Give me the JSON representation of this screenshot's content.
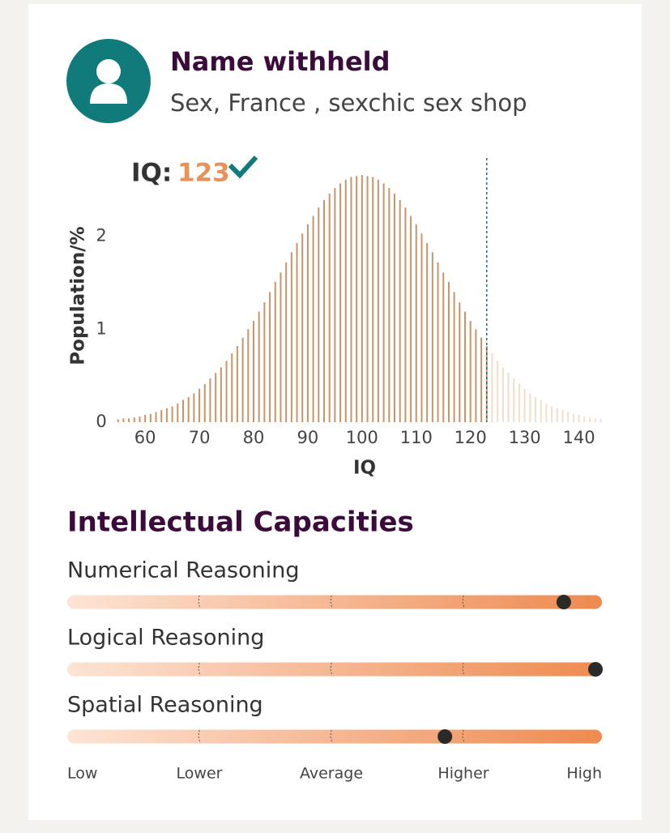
{
  "profile": {
    "name": "Name withheld",
    "subtitle": "Sex, France , sexchic sex shop"
  },
  "chart_data": {
    "type": "bar",
    "iq_label": "IQ:",
    "iq_score": 123,
    "xlabel": "IQ",
    "ylabel": "Population/%",
    "x": [
      55,
      56,
      57,
      58,
      59,
      60,
      61,
      62,
      63,
      64,
      65,
      66,
      67,
      68,
      69,
      70,
      71,
      72,
      73,
      74,
      75,
      76,
      77,
      78,
      79,
      80,
      81,
      82,
      83,
      84,
      85,
      86,
      87,
      88,
      89,
      90,
      91,
      92,
      93,
      94,
      95,
      96,
      97,
      98,
      99,
      100,
      101,
      102,
      103,
      104,
      105,
      106,
      107,
      108,
      109,
      110,
      111,
      112,
      113,
      114,
      115,
      116,
      117,
      118,
      119,
      120,
      121,
      122,
      123,
      124,
      125,
      126,
      127,
      128,
      129,
      130,
      131,
      132,
      133,
      134,
      135,
      136,
      137,
      138,
      139,
      140,
      141,
      142,
      143,
      144
    ],
    "values": [
      0.03,
      0.04,
      0.04,
      0.05,
      0.06,
      0.08,
      0.09,
      0.11,
      0.13,
      0.15,
      0.17,
      0.2,
      0.24,
      0.27,
      0.31,
      0.36,
      0.41,
      0.47,
      0.53,
      0.59,
      0.66,
      0.74,
      0.82,
      0.91,
      1.0,
      1.09,
      1.19,
      1.29,
      1.4,
      1.51,
      1.61,
      1.72,
      1.83,
      1.93,
      2.03,
      2.13,
      2.22,
      2.31,
      2.39,
      2.46,
      2.52,
      2.57,
      2.61,
      2.64,
      2.65,
      2.66,
      2.65,
      2.64,
      2.61,
      2.57,
      2.52,
      2.46,
      2.39,
      2.31,
      2.22,
      2.13,
      2.03,
      1.93,
      1.83,
      1.72,
      1.61,
      1.51,
      1.4,
      1.29,
      1.19,
      1.09,
      1.0,
      0.91,
      0.82,
      0.74,
      0.66,
      0.59,
      0.53,
      0.47,
      0.41,
      0.36,
      0.31,
      0.27,
      0.24,
      0.2,
      0.17,
      0.15,
      0.13,
      0.11,
      0.09,
      0.08,
      0.06,
      0.05,
      0.04,
      0.04
    ],
    "color": "#c8946a",
    "color_above": "#f2dccb",
    "marker_color": "#1d7070",
    "xlim": [
      54,
      145
    ],
    "ylim": [
      0,
      2.8
    ],
    "xticks": [
      60,
      70,
      80,
      90,
      100,
      110,
      120,
      130,
      140
    ],
    "yticks": [
      0,
      1,
      2
    ]
  },
  "capacities": {
    "title": "Intellectual Capacities",
    "scale": [
      {
        "value": 0,
        "label": "Low"
      },
      {
        "value": 1,
        "label": "Lower"
      },
      {
        "value": 2,
        "label": "Average"
      },
      {
        "value": 3,
        "label": "Higher"
      },
      {
        "value": 4,
        "label": "High"
      }
    ],
    "items": [
      {
        "label": "Numerical Reasoning",
        "value": 3.76
      },
      {
        "label": "Logical Reasoning",
        "value": 4.0
      },
      {
        "label": "Spatial Reasoning",
        "value": 2.86
      }
    ]
  }
}
